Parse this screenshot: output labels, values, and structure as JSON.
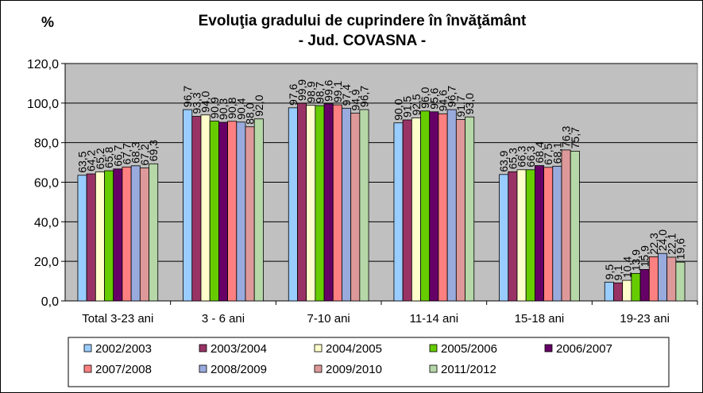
{
  "chart_data": {
    "type": "bar",
    "title": "Evoluţia gradului de cuprindere în învăţământ",
    "subtitle": "- Jud. COVASNA -",
    "ylabel": "%",
    "xlabel": "",
    "ylim": [
      0,
      120
    ],
    "yticks": [
      "0,0",
      "20,0",
      "40,0",
      "60,0",
      "80,0",
      "100,0",
      "120,0"
    ],
    "grid": true,
    "plot_background": "#c0c0c0",
    "legend_position": "bottom",
    "categories": [
      "Total 3-23 ani",
      "3 - 6 ani",
      "7-10 ani",
      "11-14 ani",
      "15-18 ani",
      "19-23 ani"
    ],
    "series": [
      {
        "name": "2002/2003",
        "color": "#99ccff",
        "values": [
          63.5,
          96.7,
          97.6,
          90.0,
          63.9,
          9.5
        ],
        "labels": [
          "63,5",
          "96,7",
          "97,6",
          "90,0",
          "63,9",
          "9,5"
        ]
      },
      {
        "name": "2003/2004",
        "color": "#993366",
        "values": [
          64.2,
          93.3,
          99.9,
          91.5,
          65.3,
          9.1
        ],
        "labels": [
          "64,2",
          "93,3",
          "99,9",
          "91,5",
          "65,3",
          "9,1"
        ]
      },
      {
        "name": "2004/2005",
        "color": "#ffffcc",
        "values": [
          65.2,
          94.0,
          98.9,
          92.5,
          66.3,
          10.4
        ],
        "labels": [
          "65,2",
          "94,0",
          "98,9",
          "92,5",
          "66,3",
          "10,4"
        ]
      },
      {
        "name": "2005/2006",
        "color": "#66cc00",
        "values": [
          65.8,
          90.9,
          98.7,
          96.0,
          66.3,
          13.9
        ],
        "labels": [
          "65,8",
          "90,9",
          "98,7",
          "96,0",
          "66,3",
          "13,9"
        ]
      },
      {
        "name": "2006/2007",
        "color": "#660066",
        "values": [
          66.7,
          90.3,
          99.6,
          95.6,
          68.4,
          15.9
        ],
        "labels": [
          "66,7",
          "90,3",
          "99,6",
          "95,6",
          "68,4",
          "15,9"
        ]
      },
      {
        "name": "2007/2008",
        "color": "#ff8080",
        "values": [
          67.7,
          90.8,
          99.1,
          94.6,
          67.5,
          22.3
        ],
        "labels": [
          "67,7",
          "90,8",
          "99,1",
          "94,6",
          "67,5",
          "22,3"
        ]
      },
      {
        "name": "2008/2009",
        "color": "#99aadd",
        "values": [
          68.3,
          90.4,
          97.4,
          96.7,
          68.1,
          24.0
        ],
        "labels": [
          "68,3",
          "90,4",
          "97,4",
          "96,7",
          "68,1",
          "24,0"
        ]
      },
      {
        "name": "2009/2010",
        "color": "#dd9999",
        "values": [
          67.2,
          88.0,
          94.9,
          91.7,
          76.3,
          22.1
        ],
        "labels": [
          "67,2",
          "88,0",
          "94,9",
          "91,7",
          "76,3",
          "22,1"
        ]
      },
      {
        "name": "2011/2012",
        "color": "#b6d7a8",
        "values": [
          69.3,
          92.0,
          96.7,
          93.0,
          75.7,
          19.6
        ],
        "labels": [
          "69,3",
          "92,0",
          "96,7",
          "93,0",
          "75,7",
          "19,6"
        ]
      }
    ]
  }
}
